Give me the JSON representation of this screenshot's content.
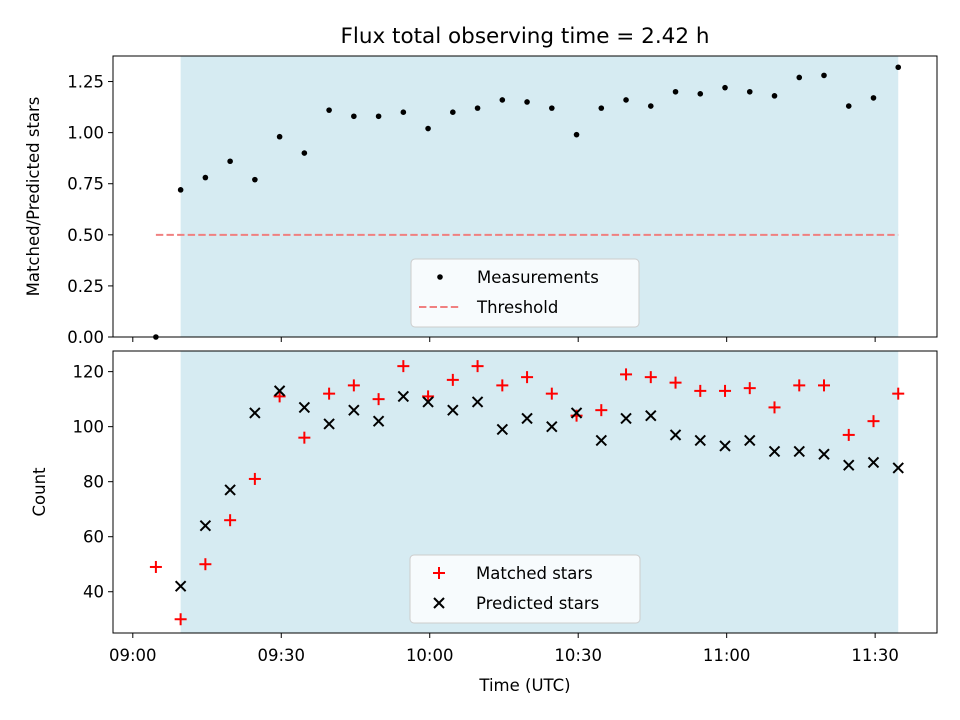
{
  "figure": {
    "title": "Flux total observing time = 2.42 h"
  },
  "colors": {
    "span": "#add8e6",
    "threshold": "#f08080",
    "matched": "#ff0000",
    "predicted": "#000000",
    "measurement": "#000000"
  },
  "chart_data": [
    {
      "type": "scatter",
      "panel": "top",
      "ylabel": "Matched/Predicted stars",
      "ylim": [
        0,
        1.375
      ],
      "yticks": [
        "0.00",
        "0.25",
        "0.50",
        "0.75",
        "1.00",
        "1.25"
      ],
      "xlim_minutes_since_0900": [
        -4,
        162.5
      ],
      "highlight_span": [
        "09:09:40",
        "11:34:40"
      ],
      "threshold": {
        "name": "Threshold",
        "value": 0.5,
        "from": "09:04:40",
        "to": "11:34:40"
      },
      "series": [
        {
          "name": "Measurements",
          "x": [
            "09:04:40",
            "09:09:40",
            "09:14:40",
            "09:19:40",
            "09:24:40",
            "09:29:40",
            "09:34:40",
            "09:39:40",
            "09:44:40",
            "09:49:40",
            "09:54:40",
            "09:59:40",
            "10:04:40",
            "10:09:40",
            "10:14:40",
            "10:19:40",
            "10:24:40",
            "10:29:40",
            "10:34:40",
            "10:39:40",
            "10:44:40",
            "10:49:40",
            "10:54:40",
            "10:59:40",
            "11:04:40",
            "11:09:40",
            "11:14:40",
            "11:19:40",
            "11:24:40",
            "11:29:40",
            "11:34:40"
          ],
          "y": [
            0.0,
            0.72,
            0.78,
            0.86,
            0.77,
            0.98,
            0.9,
            1.11,
            1.08,
            1.08,
            1.1,
            1.02,
            1.1,
            1.12,
            1.16,
            1.15,
            1.12,
            0.99,
            1.12,
            1.16,
            1.13,
            1.2,
            1.19,
            1.22,
            1.2,
            1.18,
            1.27,
            1.28,
            1.13,
            1.17,
            1.32
          ]
        }
      ],
      "legend": {
        "placement": "lower center"
      }
    },
    {
      "type": "scatter",
      "panel": "bottom",
      "ylabel": "Count",
      "xlabel": "Time (UTC)",
      "ylim": [
        25,
        127.5
      ],
      "yticks": [
        "40",
        "60",
        "80",
        "100",
        "120"
      ],
      "xticks": [
        "09:00",
        "09:30",
        "10:00",
        "10:30",
        "11:00",
        "11:30"
      ],
      "xlim_minutes_since_0900": [
        -4,
        162.5
      ],
      "highlight_span": [
        "09:09:40",
        "11:34:40"
      ],
      "series": [
        {
          "name": "Matched stars",
          "marker": "+",
          "x": [
            "09:04:40",
            "09:09:40",
            "09:14:40",
            "09:19:40",
            "09:24:40",
            "09:29:40",
            "09:34:40",
            "09:39:40",
            "09:44:40",
            "09:49:40",
            "09:54:40",
            "09:59:40",
            "10:04:40",
            "10:09:40",
            "10:14:40",
            "10:19:40",
            "10:24:40",
            "10:29:40",
            "10:34:40",
            "10:39:40",
            "10:44:40",
            "10:49:40",
            "10:54:40",
            "10:59:40",
            "11:04:40",
            "11:09:40",
            "11:14:40",
            "11:19:40",
            "11:24:40",
            "11:29:40",
            "11:34:40"
          ],
          "y": [
            49,
            30,
            50,
            66,
            81,
            111,
            96,
            112,
            115,
            110,
            122,
            111,
            117,
            122,
            115,
            118,
            112,
            104,
            106,
            119,
            118,
            116,
            113,
            113,
            114,
            107,
            115,
            115,
            97,
            102,
            112
          ]
        },
        {
          "name": "Predicted stars",
          "marker": "x",
          "x": [
            "09:09:40",
            "09:14:40",
            "09:19:40",
            "09:24:40",
            "09:29:40",
            "09:34:40",
            "09:39:40",
            "09:44:40",
            "09:49:40",
            "09:54:40",
            "09:59:40",
            "10:04:40",
            "10:09:40",
            "10:14:40",
            "10:19:40",
            "10:24:40",
            "10:29:40",
            "10:34:40",
            "10:39:40",
            "10:44:40",
            "10:49:40",
            "10:54:40",
            "10:59:40",
            "11:04:40",
            "11:09:40",
            "11:14:40",
            "11:19:40",
            "11:24:40",
            "11:29:40",
            "11:34:40"
          ],
          "y": [
            42,
            64,
            77,
            105,
            113,
            107,
            101,
            106,
            102,
            111,
            109,
            106,
            109,
            99,
            103,
            100,
            105,
            95,
            103,
            104,
            97,
            95,
            93,
            95,
            91,
            91,
            90,
            86,
            87,
            85
          ]
        }
      ],
      "legend": {
        "placement": "lower center"
      }
    }
  ]
}
